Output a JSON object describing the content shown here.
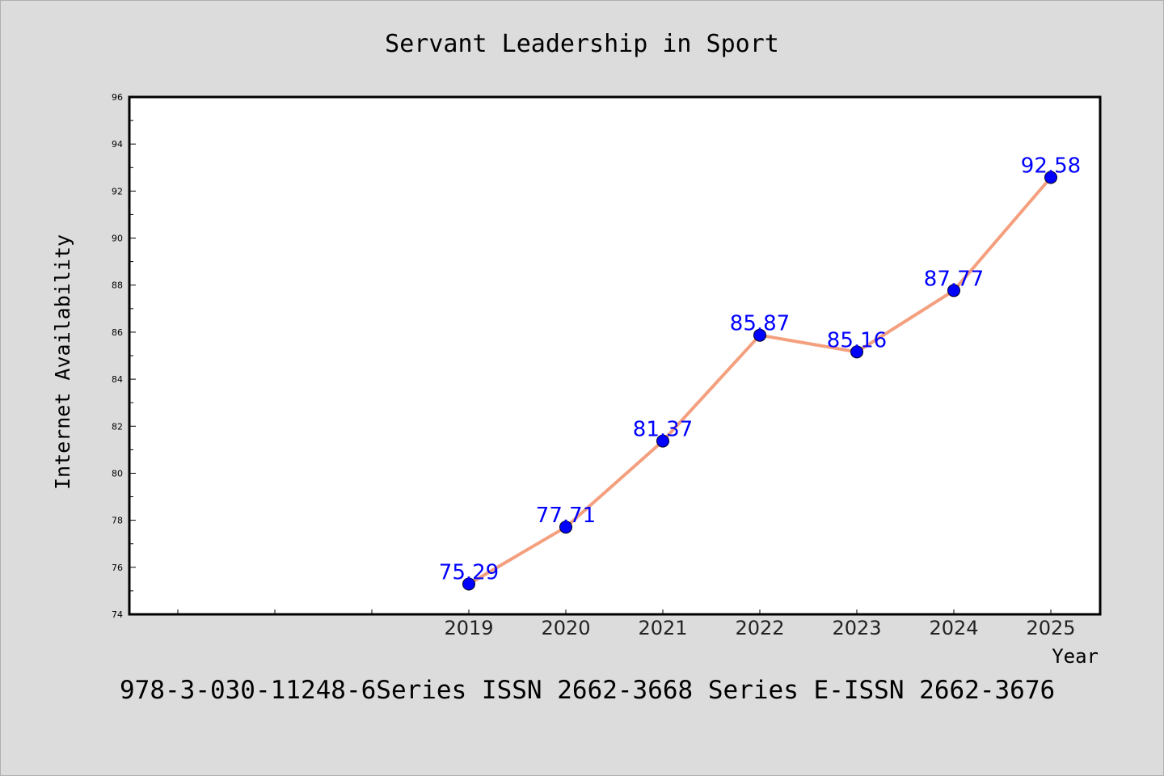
{
  "chart_data": {
    "type": "line",
    "title": "Servant Leadership in Sport",
    "xlabel": "Year",
    "ylabel": "Internet Availability",
    "x": [
      "2019",
      "2020",
      "2021",
      "2022",
      "2023",
      "2024",
      "2025"
    ],
    "series": [
      {
        "values": [
          75.29,
          77.71,
          81.37,
          85.87,
          85.16,
          87.77,
          92.58
        ]
      }
    ],
    "data_labels": [
      "75.29",
      "77.71",
      "81.37",
      "85.87",
      "85.16",
      "87.77",
      "92.58"
    ],
    "ylim": [
      74,
      96
    ],
    "yticks": [
      "74",
      "76",
      "78",
      "80",
      "82",
      "84",
      "86",
      "88",
      "90",
      "92",
      "94",
      "96"
    ],
    "grid": false,
    "legend": "none",
    "colors": {
      "background": "#dcdcdc",
      "plot_background": "#ffffff",
      "line": "#f4a07f",
      "marker": "#0000ff",
      "data_label": "#0000ff",
      "axis": "#000000"
    }
  },
  "footer_text": "978-3-030-11248-6Series ISSN 2662-3668 Series E-ISSN 2662-3676"
}
